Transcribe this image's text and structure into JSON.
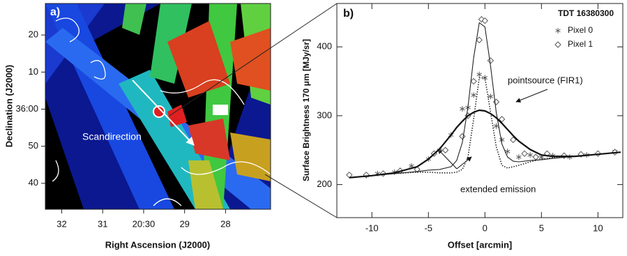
{
  "chart_data": [
    {
      "type": "image",
      "title": "a)",
      "annotation": "Scandirection",
      "xlabel": "Right Ascension (J2000)",
      "ylabel": "Declination (J2000)",
      "xlim": [
        32.4,
        26.9
      ],
      "xticks": [
        32,
        31,
        {
          "value": 30,
          "label": "20:30"
        },
        29,
        28
      ],
      "ylim": [
        -27,
        28.5
      ],
      "yticks": [
        20,
        10,
        {
          "value": 0,
          "label": "36:00"
        },
        {
          "value": -10,
          "label": "50"
        },
        {
          "value": -20,
          "label": "40"
        }
      ]
    },
    {
      "type": "line",
      "title": "b)",
      "legend_title": "TDT 16380300",
      "xlabel": "Offset [arcmin]",
      "ylabel": "Surface Brightness 170 μm [MJy/sr]",
      "xlim": [
        -13.1,
        12.2
      ],
      "xticks": [
        -10,
        -5,
        0,
        5,
        10
      ],
      "ylim": [
        152,
        463
      ],
      "yticks": [
        200,
        300,
        400
      ],
      "annotations": [
        "pointsource (FIR1)",
        "extended emission"
      ],
      "series": [
        {
          "name": "Pixel 0",
          "marker": "asterisk",
          "color": "#555555",
          "x": [
            -10.5,
            -9.5,
            -8,
            -6.5,
            -5,
            -4,
            -3,
            -2,
            -1.5,
            -1,
            -0.5,
            0,
            0.5,
            1,
            1.5,
            2,
            3,
            4,
            5,
            6,
            7.5,
            9,
            11.5
          ],
          "values": [
            213,
            216,
            218,
            227,
            237,
            250,
            272,
            310,
            312,
            330,
            360,
            355,
            328,
            285,
            265,
            248,
            240,
            243,
            240,
            242,
            240,
            243,
            248
          ]
        },
        {
          "name": "Pixel 1",
          "marker": "diamond",
          "color": "#555555",
          "x": [
            -12,
            -10.5,
            -9,
            -7.5,
            -6,
            -4.5,
            -3.5,
            -2,
            -1.5,
            -1,
            -0.5,
            -0.3,
            0,
            0.5,
            1,
            1.5,
            2.5,
            3.5,
            4.5,
            5.5,
            7,
            8.5,
            10,
            11.5
          ],
          "values": [
            214,
            214,
            216,
            220,
            222,
            245,
            250,
            270,
            300,
            350,
            410,
            440,
            438,
            380,
            320,
            295,
            265,
            245,
            240,
            245,
            242,
            244,
            245,
            247
          ]
        },
        {
          "style": "thin",
          "color": "#222222",
          "x": [
            -12,
            -10,
            -8,
            -6,
            -5,
            -4,
            -3,
            -2.5,
            -2,
            -1.5,
            -1,
            -0.5,
            0,
            0.5,
            1,
            1.5,
            2,
            2.5,
            3,
            4,
            5,
            6,
            8,
            10,
            12
          ],
          "values": [
            210,
            213,
            216,
            219,
            221,
            222,
            226,
            235,
            261,
            313,
            384,
            435,
            429,
            372,
            305,
            259,
            240,
            234,
            233,
            235,
            236,
            238,
            241,
            244,
            247
          ]
        },
        {
          "style": "dotted",
          "color": "#222222",
          "x": [
            -12,
            -10,
            -8,
            -6,
            -5,
            -4,
            -3,
            -2.5,
            -2,
            -1.5,
            -1,
            -0.5,
            0,
            0.5,
            1,
            1.5,
            2,
            2.5,
            3,
            4,
            5,
            6,
            8,
            10,
            12
          ],
          "values": [
            210,
            213,
            216,
            218,
            218,
            217,
            217,
            218,
            222,
            240,
            295,
            355,
            355,
            305,
            255,
            228,
            224,
            226,
            228,
            233,
            237,
            239,
            241,
            244,
            247
          ]
        },
        {
          "style": "thick",
          "color": "#111111",
          "x": [
            -12,
            -10,
            -8,
            -6,
            -5,
            -4,
            -3,
            -2.5,
            -2,
            -1.5,
            -1,
            -0.5,
            0,
            0.5,
            1,
            1.5,
            2,
            2.5,
            3,
            4,
            5,
            6,
            8,
            10,
            12
          ],
          "values": [
            210,
            213,
            217,
            226,
            237,
            252,
            272,
            283,
            292,
            300,
            305,
            308,
            307,
            303,
            297,
            289,
            280,
            271,
            263,
            251,
            243,
            241,
            241,
            244,
            247
          ]
        }
      ]
    }
  ]
}
